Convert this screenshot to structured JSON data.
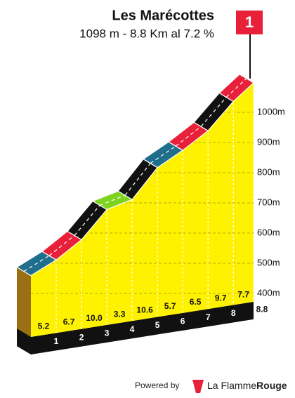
{
  "chart_data": {
    "type": "climb-profile",
    "title": "Les Marécottes",
    "subtitle": "1098 m - 8.8 Km al 7.2 %",
    "flag": "1",
    "x": [
      0,
      1,
      2,
      3,
      4,
      5,
      6,
      7,
      8,
      8.8
    ],
    "elevation": [
      459,
      511,
      578,
      678,
      711,
      817,
      874,
      939,
      1036,
      1098
    ],
    "gradients": {
      "values": [
        5.2,
        6.7,
        10,
        3.3,
        10.6,
        5.7,
        6.5,
        9.7,
        7.7
      ],
      "value_labels": [
        "5.2",
        "6.7",
        "10.0",
        "3.3",
        "10.6",
        "5.7",
        "6.5",
        "9.7",
        "7.7"
      ],
      "colors": [
        "#1f6e8c",
        "#e8203a",
        "#111111",
        "#7ed321",
        "#111111",
        "#1f6e8c",
        "#e8203a",
        "#111111",
        "#e8203a"
      ]
    },
    "xlim": [
      0,
      8.8
    ],
    "xticks": [
      1,
      2,
      3,
      4,
      5,
      6,
      7,
      8,
      8.8
    ],
    "ylim": [
      300,
      1100
    ],
    "yticks": [
      {
        "value": 400,
        "label": "400m"
      },
      {
        "value": 500,
        "label": "500m"
      },
      {
        "value": 600,
        "label": "600m"
      },
      {
        "value": 700,
        "label": "700m"
      },
      {
        "value": 800,
        "label": "800m"
      },
      {
        "value": 900,
        "label": "900m"
      },
      {
        "value": 1000,
        "label": "1000m"
      }
    ],
    "grid": true,
    "fill_color": "#fff200",
    "side_color": "#9b6f14",
    "base_color": "#111111",
    "flag_color": "#e8203a"
  },
  "footer": {
    "powered_by": "Powered by",
    "brand_light": "La Flamme",
    "brand_bold": "Rouge"
  }
}
